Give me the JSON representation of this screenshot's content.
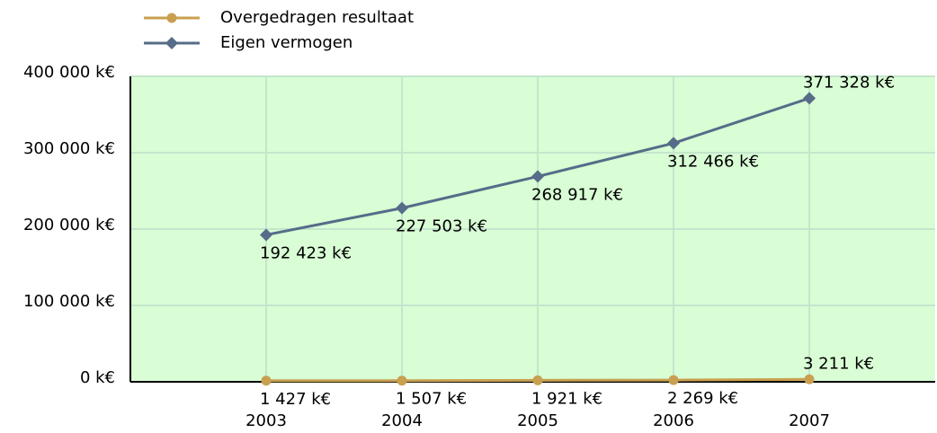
{
  "chart_data": {
    "type": "line",
    "categories": [
      "2003",
      "2004",
      "2005",
      "2006",
      "2007"
    ],
    "series": [
      {
        "name": "Overgedragen resultaat",
        "color": "#c8a050",
        "marker": "circle",
        "values": [
          1427,
          1507,
          1921,
          2269,
          3211
        ],
        "value_labels": [
          "1 427 k€",
          "1 507 k€",
          "1 921 k€",
          "2 269 k€",
          "3 211 k€"
        ]
      },
      {
        "name": "Eigen vermogen",
        "color": "#566c88",
        "marker": "diamond",
        "values": [
          192423,
          227503,
          268917,
          312466,
          371328
        ],
        "value_labels": [
          "192 423 k€",
          "227 503 k€",
          "268 917 k€",
          "312 466 k€",
          "371 328 k€"
        ]
      }
    ],
    "ylim": [
      0,
      400000
    ],
    "yticks": [
      {
        "value": 0,
        "label": "0 k€"
      },
      {
        "value": 100000,
        "label": "100 000 k€"
      },
      {
        "value": 200000,
        "label": "200 000 k€"
      },
      {
        "value": 300000,
        "label": "300 000 k€"
      },
      {
        "value": 400000,
        "label": "400 000 k€"
      }
    ],
    "grid": true,
    "legend": "top",
    "background": "#d9fdd5"
  }
}
